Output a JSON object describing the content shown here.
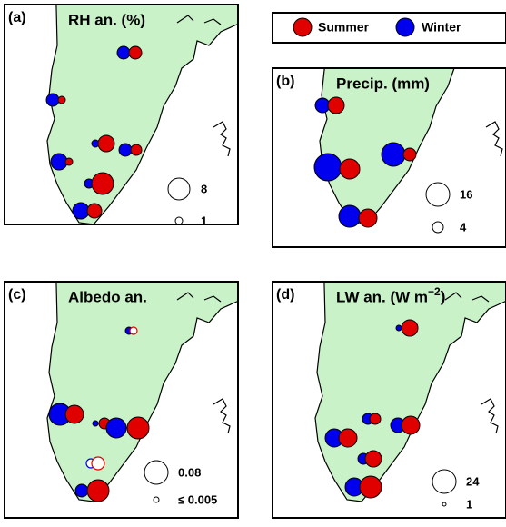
{
  "legend": {
    "summer": "Summer",
    "winter": "Winter"
  },
  "panels": [
    {
      "label": "(a)",
      "title": "RH an. (%)",
      "scale": [
        "8",
        "1"
      ]
    },
    {
      "label": "(b)",
      "title": "Precip. (mm)",
      "scale": [
        "16",
        "4"
      ]
    },
    {
      "label": "(c)",
      "title": "Albedo an.",
      "scale": [
        "0.08",
        "≤ 0.005"
      ]
    },
    {
      "label": "(d)",
      "title": "LW an. (W m",
      "title_sup": "−2",
      "title_end": ")",
      "scale": [
        "24",
        "1"
      ]
    }
  ]
}
